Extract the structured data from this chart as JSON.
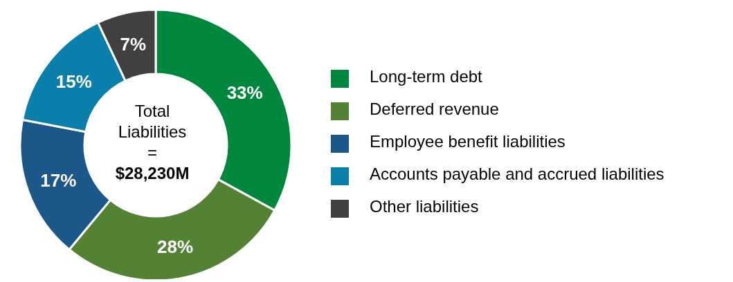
{
  "chart_data": {
    "type": "donut",
    "categories": [
      "Long-term debt",
      "Deferred revenue",
      "Employee benefit liabilities",
      "Accounts payable and accrued liabilities",
      "Other liabilities"
    ],
    "values": [
      33,
      28,
      17,
      15,
      7
    ],
    "value_labels": [
      "33%",
      "28%",
      "17%",
      "15%",
      "7%"
    ],
    "colors": [
      "#00873e",
      "#548235",
      "#1b5788",
      "#0a7fac",
      "#404040"
    ],
    "annotations": [
      "Total",
      "Liabilities",
      "=",
      "$28,230M"
    ],
    "legend": "right"
  }
}
